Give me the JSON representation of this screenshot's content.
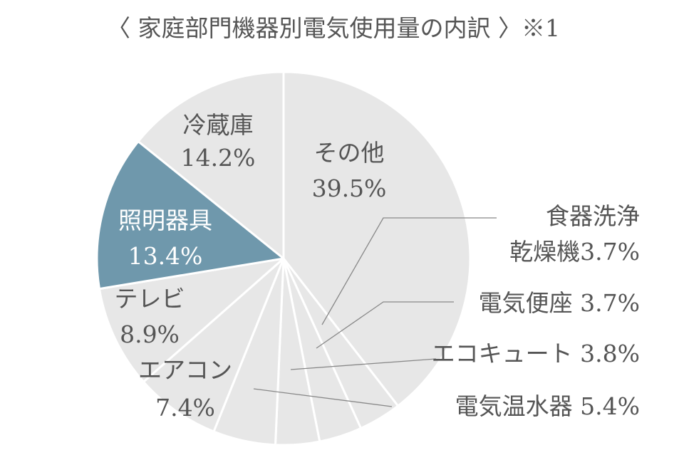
{
  "chart_data": {
    "type": "pie",
    "title": "〈 家庭部門機器別電気使用量の内訳 〉※1",
    "start_angle_deg": 0,
    "direction": "clockwise",
    "colors": {
      "default": "#e7e7e7",
      "highlight": "#6f98ac",
      "edge": "#ffffff",
      "leader": "#888888"
    },
    "slices": [
      {
        "label": "その他",
        "value": 39.5,
        "value_label": "39.5%",
        "highlight": false
      },
      {
        "label": "食器洗浄乾燥機",
        "label_lines": [
          "食器洗浄",
          "乾燥機3.7%"
        ],
        "value": 3.7,
        "value_label": "3.7%",
        "highlight": false
      },
      {
        "label": "電気便座",
        "label_lines": [
          "電気便座 3.7%"
        ],
        "value": 3.7,
        "value_label": "3.7%",
        "highlight": false
      },
      {
        "label": "エコキュート",
        "label_lines": [
          "エコキュート 3.8%"
        ],
        "value": 3.8,
        "value_label": "3.8%",
        "highlight": false
      },
      {
        "label": "電気温水器",
        "label_lines": [
          "電気温水器 5.4%"
        ],
        "value": 5.4,
        "value_label": "5.4%",
        "highlight": false
      },
      {
        "label": "エアコン",
        "value": 7.4,
        "value_label": "7.4%",
        "highlight": false
      },
      {
        "label": "テレビ",
        "value": 8.9,
        "value_label": "8.9%",
        "highlight": false
      },
      {
        "label": "照明器具",
        "value": 13.4,
        "value_label": "13.4%",
        "highlight": true
      },
      {
        "label": "冷蔵庫",
        "value": 14.2,
        "value_label": "14.2%",
        "highlight": false
      }
    ]
  }
}
